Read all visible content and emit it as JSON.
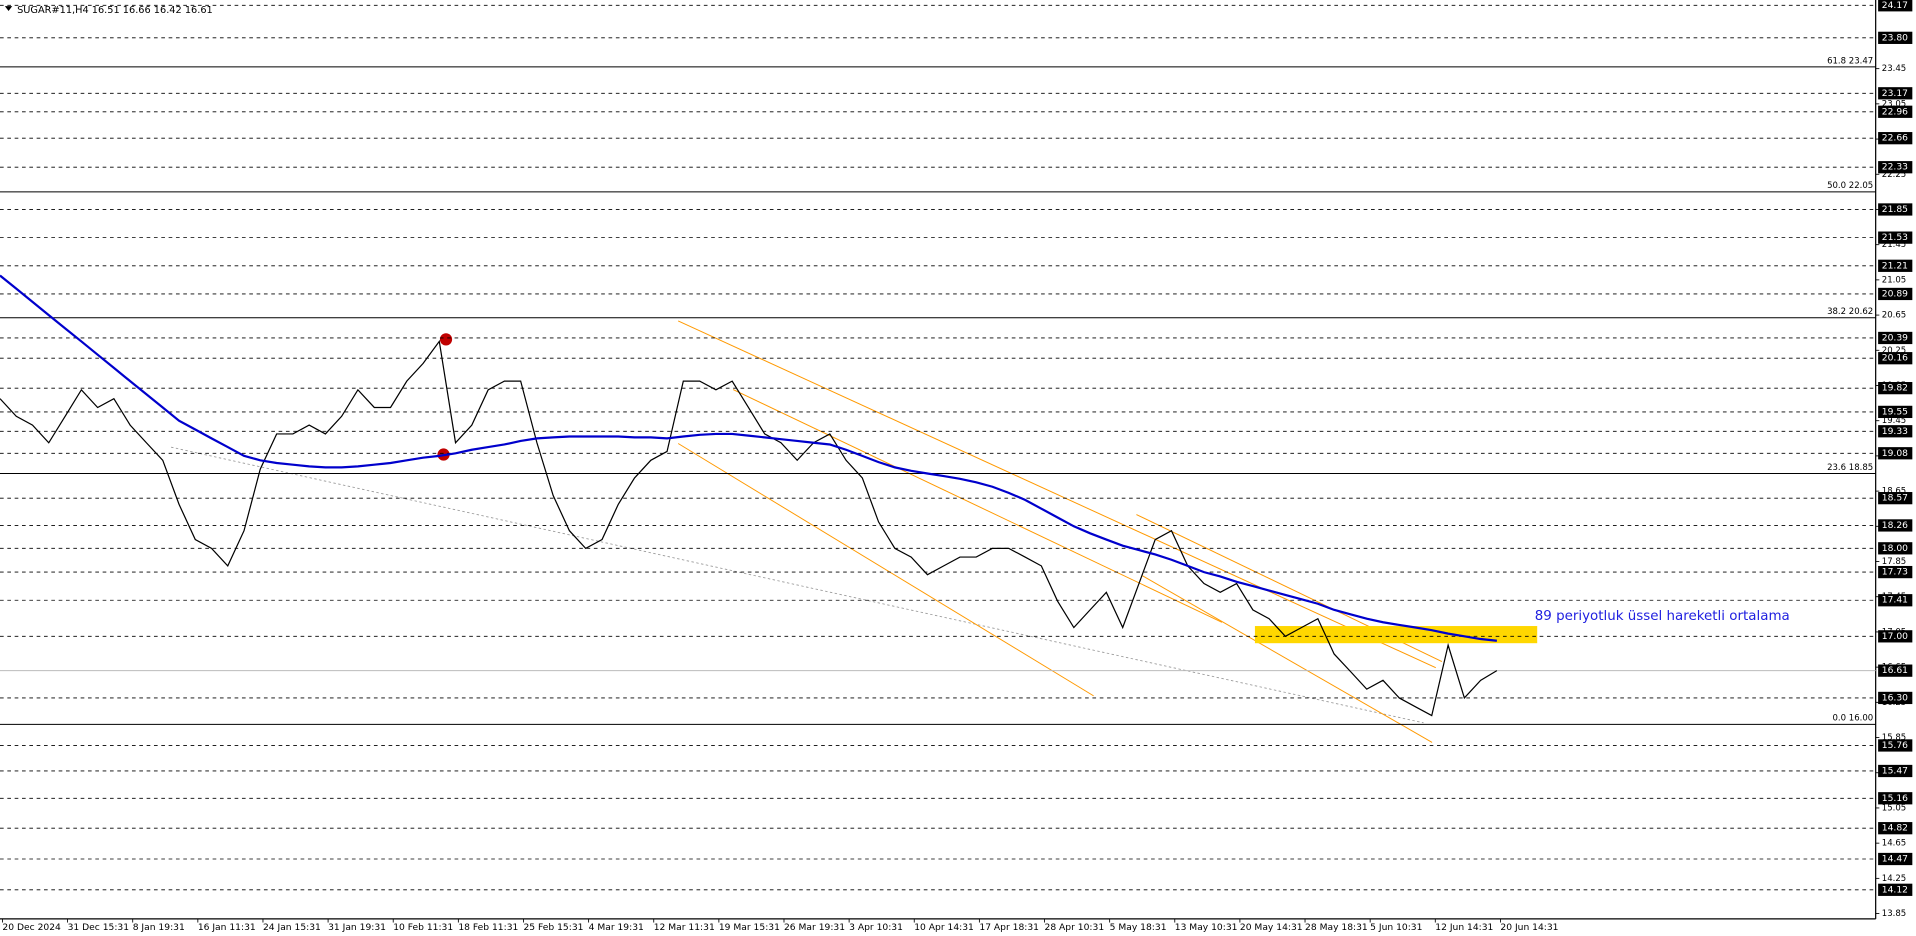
{
  "chart_data": {
    "type": "line",
    "title": "SUGAR#11,H4  16.51 16.66 16.42 16.61",
    "x_labels": [
      "20 Dec 2024",
      "31 Dec 15:31",
      "8 Jan 19:31",
      "16 Jan 11:31",
      "24 Jan 15:31",
      "31 Jan 19:31",
      "10 Feb 11:31",
      "18 Feb 11:31",
      "25 Feb 15:31",
      "4 Mar 19:31",
      "12 Mar 11:31",
      "19 Mar 15:31",
      "26 Mar 19:31",
      "3 Apr 10:31",
      "10 Apr 14:31",
      "17 Apr 18:31",
      "28 Apr 10:31",
      "5 May 18:31",
      "13 May 10:31",
      "20 May 14:31",
      "28 May 18:31",
      "5 Jun 10:31",
      "12 Jun 14:31",
      "20 Jun 14:31"
    ],
    "series": [
      {
        "color": "#000000",
        "values": [
          19.7,
          19.5,
          19.4,
          19.2,
          19.5,
          19.8,
          19.6,
          19.7,
          19.4,
          19.2,
          19.0,
          18.5,
          18.1,
          18.0,
          17.8,
          18.2,
          18.9,
          19.3,
          19.3,
          19.4,
          19.3,
          19.5,
          19.8,
          19.6,
          19.6,
          19.9,
          20.1,
          20.35,
          19.2,
          19.4,
          19.8,
          19.9,
          19.9,
          19.2,
          18.6,
          18.2,
          18.0,
          18.1,
          18.5,
          18.8,
          19.0,
          19.1,
          19.9,
          19.9,
          19.8,
          19.9,
          19.6,
          19.3,
          19.2,
          19.0,
          19.2,
          19.3,
          19.0,
          18.8,
          18.3,
          18.0,
          17.9,
          17.7,
          17.8,
          17.9,
          17.9,
          18.0,
          18.0,
          17.9,
          17.8,
          17.4,
          17.1,
          17.3,
          17.5,
          17.1,
          17.6,
          18.1,
          18.2,
          17.8,
          17.6,
          17.5,
          17.6,
          17.3,
          17.2,
          17.0,
          17.1,
          17.2,
          16.8,
          16.6,
          16.4,
          16.5,
          16.3,
          16.2,
          16.1,
          16.9,
          16.3,
          16.5,
          16.61
        ]
      },
      {
        "color": "#0000cc",
        "values": [
          21.1,
          20.95,
          20.8,
          20.65,
          20.5,
          20.35,
          20.2,
          20.05,
          19.9,
          19.75,
          19.6,
          19.45,
          19.35,
          19.25,
          19.15,
          19.05,
          19.0,
          18.97,
          18.95,
          18.93,
          18.92,
          18.92,
          18.93,
          18.95,
          18.97,
          19.0,
          19.03,
          19.05,
          19.08,
          19.12,
          19.15,
          19.18,
          19.22,
          19.25,
          19.26,
          19.27,
          19.27,
          19.27,
          19.27,
          19.26,
          19.26,
          19.25,
          19.27,
          19.29,
          19.3,
          19.3,
          19.28,
          19.26,
          19.24,
          19.22,
          19.2,
          19.18,
          19.12,
          19.05,
          18.98,
          18.92,
          18.88,
          18.85,
          18.82,
          18.79,
          18.75,
          18.7,
          18.63,
          18.55,
          18.45,
          18.35,
          18.25,
          18.17,
          18.1,
          18.03,
          17.98,
          17.93,
          17.87,
          17.8,
          17.73,
          17.68,
          17.62,
          17.57,
          17.52,
          17.47,
          17.42,
          17.37,
          17.3,
          17.25,
          17.2,
          17.16,
          17.13,
          17.1,
          17.07,
          17.03,
          17.0,
          16.97,
          16.95
        ]
      }
    ],
    "ylim": [
      13.79,
      24.23
    ],
    "yticks": [
      23.45,
      23.05,
      22.65,
      22.25,
      21.85,
      21.45,
      21.05,
      20.65,
      20.25,
      19.85,
      19.45,
      19.05,
      18.65,
      18.25,
      17.85,
      17.45,
      17.05,
      16.65,
      16.25,
      15.85,
      15.45,
      15.05,
      14.65,
      14.25,
      13.85
    ],
    "levels": [
      24.17,
      {
        "value": 23.8,
        "label": "23.80"
      },
      23.17,
      22.96,
      22.66,
      22.33,
      21.85,
      21.53,
      21.21,
      20.89,
      20.39,
      20.16,
      19.82,
      19.55,
      19.33,
      19.08,
      18.57,
      18.26,
      {
        "value": 18,
        "label": "18.00"
      },
      17.73,
      17.41,
      {
        "value": 17,
        "label": "17.00"
      },
      {
        "value": 16.3,
        "label": "16.30"
      },
      15.76,
      15.47,
      15.16,
      14.82,
      14.47,
      14.12
    ],
    "fib_levels": [
      {
        "value": 23.47,
        "label": "61.8 23.47"
      },
      {
        "value": 22.05,
        "label": "50.0 22.05"
      },
      {
        "value": 20.62,
        "label": "38.2 20.62"
      },
      {
        "value": 18.85,
        "label": "23.6 18.85"
      },
      {
        "value": 16,
        "label": "0.0 16.00"
      }
    ],
    "current_price": 16.61,
    "annotation": "89 periyotluk üssel hareketli ortalama"
  }
}
